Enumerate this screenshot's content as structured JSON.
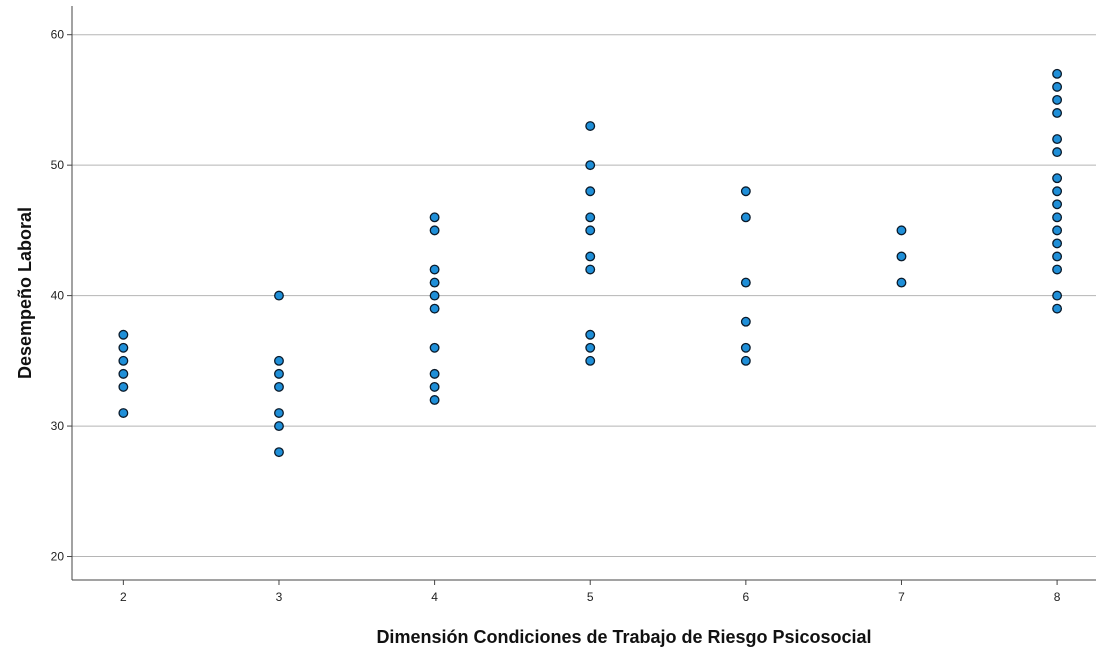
{
  "chart_data": {
    "type": "scatter",
    "title": "",
    "xlabel": "Dimensión Condiciones de Trabajo de Riesgo Psicosocial",
    "ylabel": "Desempeño Laboral",
    "xlim": [
      1.67,
      8.25
    ],
    "ylim": [
      18.2,
      62.2
    ],
    "x_ticks": [
      2,
      3,
      4,
      5,
      6,
      7,
      8
    ],
    "y_ticks": [
      20,
      30,
      40,
      50,
      60
    ],
    "grid": "horizontal",
    "legend": "none",
    "colors": {
      "point_fill": "#1f8fd8",
      "point_stroke": "#0a1a2a",
      "grid": "#b5b5b5",
      "axis": "#444444"
    },
    "points": [
      {
        "x": 2,
        "y": 31
      },
      {
        "x": 2,
        "y": 33
      },
      {
        "x": 2,
        "y": 34
      },
      {
        "x": 2,
        "y": 35
      },
      {
        "x": 2,
        "y": 36
      },
      {
        "x": 2,
        "y": 37
      },
      {
        "x": 3,
        "y": 28
      },
      {
        "x": 3,
        "y": 30
      },
      {
        "x": 3,
        "y": 31
      },
      {
        "x": 3,
        "y": 33
      },
      {
        "x": 3,
        "y": 34
      },
      {
        "x": 3,
        "y": 35
      },
      {
        "x": 3,
        "y": 40
      },
      {
        "x": 4,
        "y": 32
      },
      {
        "x": 4,
        "y": 33
      },
      {
        "x": 4,
        "y": 34
      },
      {
        "x": 4,
        "y": 36
      },
      {
        "x": 4,
        "y": 39
      },
      {
        "x": 4,
        "y": 40
      },
      {
        "x": 4,
        "y": 41
      },
      {
        "x": 4,
        "y": 42
      },
      {
        "x": 4,
        "y": 45
      },
      {
        "x": 4,
        "y": 46
      },
      {
        "x": 5,
        "y": 35
      },
      {
        "x": 5,
        "y": 36
      },
      {
        "x": 5,
        "y": 37
      },
      {
        "x": 5,
        "y": 42
      },
      {
        "x": 5,
        "y": 43
      },
      {
        "x": 5,
        "y": 45
      },
      {
        "x": 5,
        "y": 46
      },
      {
        "x": 5,
        "y": 48
      },
      {
        "x": 5,
        "y": 50
      },
      {
        "x": 5,
        "y": 53
      },
      {
        "x": 6,
        "y": 35
      },
      {
        "x": 6,
        "y": 36
      },
      {
        "x": 6,
        "y": 38
      },
      {
        "x": 6,
        "y": 41
      },
      {
        "x": 6,
        "y": 46
      },
      {
        "x": 6,
        "y": 48
      },
      {
        "x": 7,
        "y": 41
      },
      {
        "x": 7,
        "y": 43
      },
      {
        "x": 7,
        "y": 45
      },
      {
        "x": 8,
        "y": 39
      },
      {
        "x": 8,
        "y": 40
      },
      {
        "x": 8,
        "y": 42
      },
      {
        "x": 8,
        "y": 43
      },
      {
        "x": 8,
        "y": 44
      },
      {
        "x": 8,
        "y": 45
      },
      {
        "x": 8,
        "y": 46
      },
      {
        "x": 8,
        "y": 47
      },
      {
        "x": 8,
        "y": 48
      },
      {
        "x": 8,
        "y": 49
      },
      {
        "x": 8,
        "y": 51
      },
      {
        "x": 8,
        "y": 52
      },
      {
        "x": 8,
        "y": 54
      },
      {
        "x": 8,
        "y": 55
      },
      {
        "x": 8,
        "y": 56
      },
      {
        "x": 8,
        "y": 57
      }
    ]
  }
}
